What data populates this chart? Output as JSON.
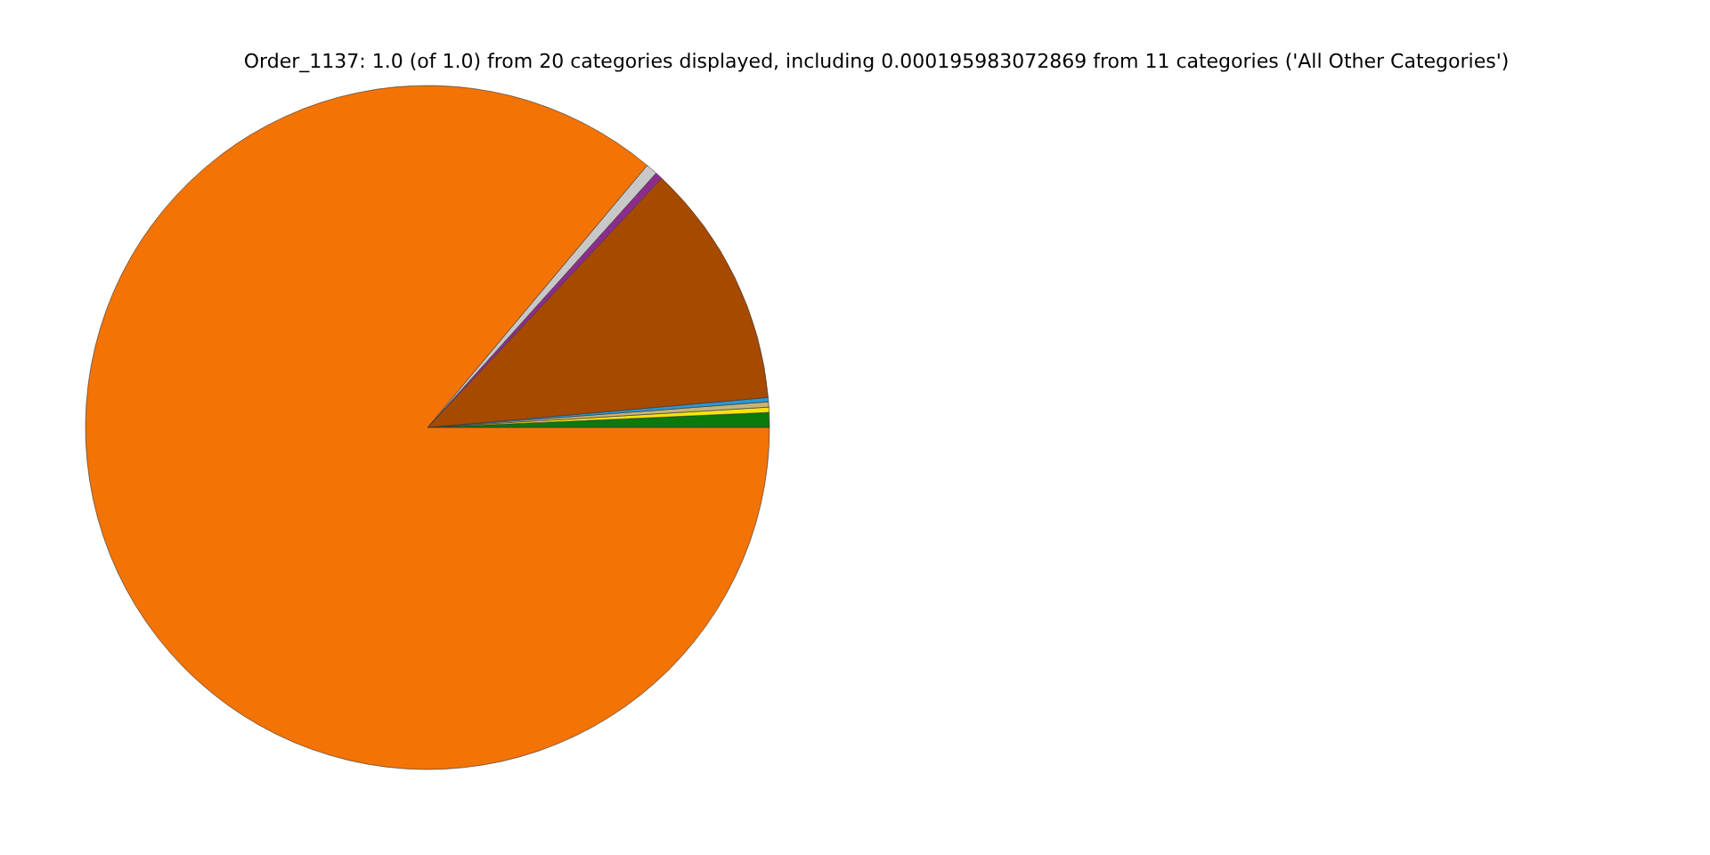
{
  "chart_data": {
    "type": "pie",
    "title": "Order_1137: 1.0 (of 1.0) from 20 categories displayed, including 0.000195983072869 from 11 categories ('All Other Categories')",
    "categories": [
      null,
      null,
      null,
      null,
      null,
      null,
      null,
      null
    ],
    "values": [
      0.7,
      0.25,
      0.25,
      0.2,
      11.6,
      0.35,
      0.55,
      86.1
    ],
    "colors": [
      "#0a7a0a",
      "#f5e50a",
      "#c8b478",
      "#2a9ad8",
      "#a64a00",
      "#8e2c8e",
      "#c8c8c8",
      "#f37305"
    ],
    "legend": false
  }
}
